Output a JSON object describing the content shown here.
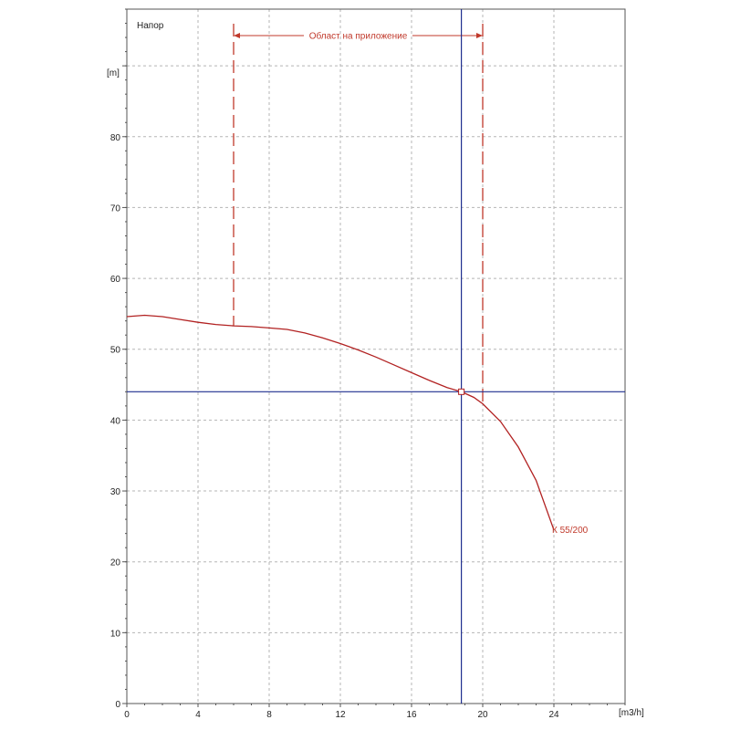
{
  "chart_data": {
    "type": "line",
    "title": "Напор",
    "ylabel": "[m]",
    "xlabel": "[m3/h]",
    "xlim": [
      0,
      28
    ],
    "ylim": [
      0,
      98
    ],
    "x_ticks": [
      0,
      4,
      8,
      12,
      16,
      20,
      24
    ],
    "y_ticks": [
      0,
      10,
      20,
      30,
      40,
      50,
      60,
      70,
      80
    ],
    "grid": true,
    "series": [
      {
        "name": "К 55/200",
        "color": "#b22222",
        "x": [
          0,
          1,
          2,
          3,
          4,
          5,
          6,
          7,
          8,
          9,
          10,
          11,
          12,
          13,
          14,
          15,
          16,
          17,
          18,
          18.8,
          19.5,
          20,
          21,
          22,
          23,
          24
        ],
        "y": [
          54.6,
          54.8,
          54.6,
          54.2,
          53.8,
          53.5,
          53.3,
          53.2,
          53.0,
          52.8,
          52.3,
          51.6,
          50.8,
          49.9,
          48.9,
          47.8,
          46.7,
          45.6,
          44.6,
          44.0,
          43.2,
          42.3,
          39.8,
          36.2,
          31.5,
          24.5
        ]
      }
    ],
    "application_range": {
      "label": "Област на приложение",
      "x_start": 6,
      "x_end": 20,
      "color": "#c0392b"
    },
    "operating_point": {
      "x": 18.8,
      "y": 44.0,
      "line_color": "#1f2f8f"
    }
  }
}
